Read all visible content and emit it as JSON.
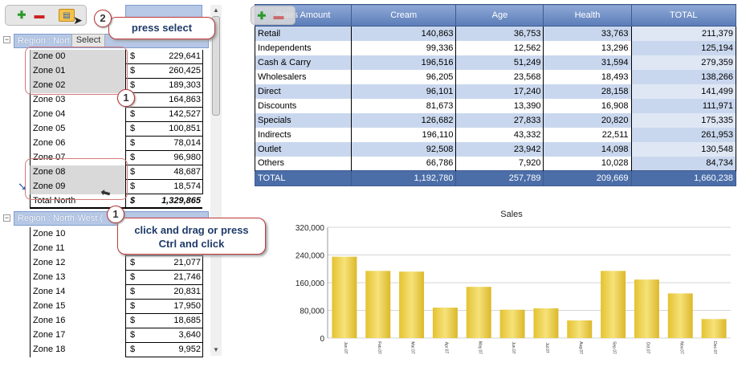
{
  "toolbar": {
    "add_icon": "plus-icon",
    "remove_icon": "minus-icon",
    "select_icon": "select-icon"
  },
  "tooltip": {
    "text": "Select"
  },
  "region1": {
    "label": "Region : Nort"
  },
  "region2": {
    "label": "Region : North-West ("
  },
  "zones_group1": [
    {
      "name": "Zone 00",
      "cur": "$",
      "value": "229,641"
    },
    {
      "name": "Zone 01",
      "cur": "$",
      "value": "260,425"
    },
    {
      "name": "Zone 02",
      "cur": "$",
      "value": "189,303"
    },
    {
      "name": "Zone 03",
      "cur": "$",
      "value": "164,863"
    },
    {
      "name": "Zone 04",
      "cur": "$",
      "value": "142,527"
    },
    {
      "name": "Zone 05",
      "cur": "$",
      "value": "100,851"
    },
    {
      "name": "Zone 06",
      "cur": "$",
      "value": "78,014"
    },
    {
      "name": "Zone 07",
      "cur": "$",
      "value": "96,980"
    },
    {
      "name": "Zone 08",
      "cur": "$",
      "value": "48,687"
    },
    {
      "name": "Zone 09",
      "cur": "$",
      "value": "18,574"
    }
  ],
  "total_north": {
    "label": "Total North",
    "cur": "$",
    "value": "1,329,865"
  },
  "zones_group2": [
    {
      "name": "Zone 10",
      "cur": "",
      "value": ""
    },
    {
      "name": "Zone 11",
      "cur": "",
      "value": ""
    },
    {
      "name": "Zone 12",
      "cur": "$",
      "value": "21,077"
    },
    {
      "name": "Zone 13",
      "cur": "$",
      "value": "21,746"
    },
    {
      "name": "Zone 14",
      "cur": "$",
      "value": "20,831"
    },
    {
      "name": "Zone 15",
      "cur": "$",
      "value": "17,950"
    },
    {
      "name": "Zone 16",
      "cur": "$",
      "value": "18,685"
    },
    {
      "name": "Zone 17",
      "cur": "$",
      "value": "3,640"
    },
    {
      "name": "Zone 18",
      "cur": "$",
      "value": "9,952"
    }
  ],
  "callouts": {
    "press_select": "press select",
    "drag_line1": "click and drag or press",
    "drag_line2": "Ctrl and click",
    "badge_one": "1",
    "badge_two": "2"
  },
  "sales_table": {
    "headers": [
      "Sales Amount",
      "Cream",
      "Age",
      "Health",
      "TOTAL"
    ],
    "rows": [
      [
        "Retail",
        "140,863",
        "36,753",
        "33,763",
        "211,379"
      ],
      [
        "Independents",
        "99,336",
        "12,562",
        "13,296",
        "125,194"
      ],
      [
        "Cash & Carry",
        "196,516",
        "51,249",
        "31,594",
        "279,359"
      ],
      [
        "Wholesalers",
        "96,205",
        "23,568",
        "18,493",
        "138,266"
      ],
      [
        "Direct",
        "96,101",
        "17,240",
        "28,158",
        "141,499"
      ],
      [
        "Discounts",
        "81,673",
        "13,390",
        "16,908",
        "111,971"
      ],
      [
        "Specials",
        "126,682",
        "27,833",
        "20,820",
        "175,335"
      ],
      [
        "Indirects",
        "196,110",
        "43,332",
        "22,511",
        "261,953"
      ],
      [
        "Outlet",
        "92,508",
        "23,942",
        "14,098",
        "130,548"
      ],
      [
        "Others",
        "66,786",
        "7,920",
        "10,028",
        "84,734"
      ]
    ],
    "total": [
      "TOTAL",
      "1,192,780",
      "257,789",
      "209,669",
      "1,660,238"
    ]
  },
  "chart_data": {
    "type": "bar",
    "title": "Sales",
    "categories": [
      "Jan.07",
      "Feb.07",
      "Mar.07",
      "Apr.07",
      "May.07",
      "Jun.07",
      "Jul.07",
      "Aug.07",
      "Sep.07",
      "Oct.07",
      "Nov.07",
      "Dec.07"
    ],
    "values": [
      235000,
      194000,
      192000,
      88000,
      148000,
      82000,
      86000,
      51000,
      194000,
      169000,
      129000,
      55000
    ],
    "ylim": [
      0,
      320000
    ],
    "yticks": [
      "0",
      "80,000",
      "160,000",
      "240,000",
      "320,000"
    ],
    "xlabel": "",
    "ylabel": "",
    "bar_color": "#e8c93a",
    "grid": true
  }
}
